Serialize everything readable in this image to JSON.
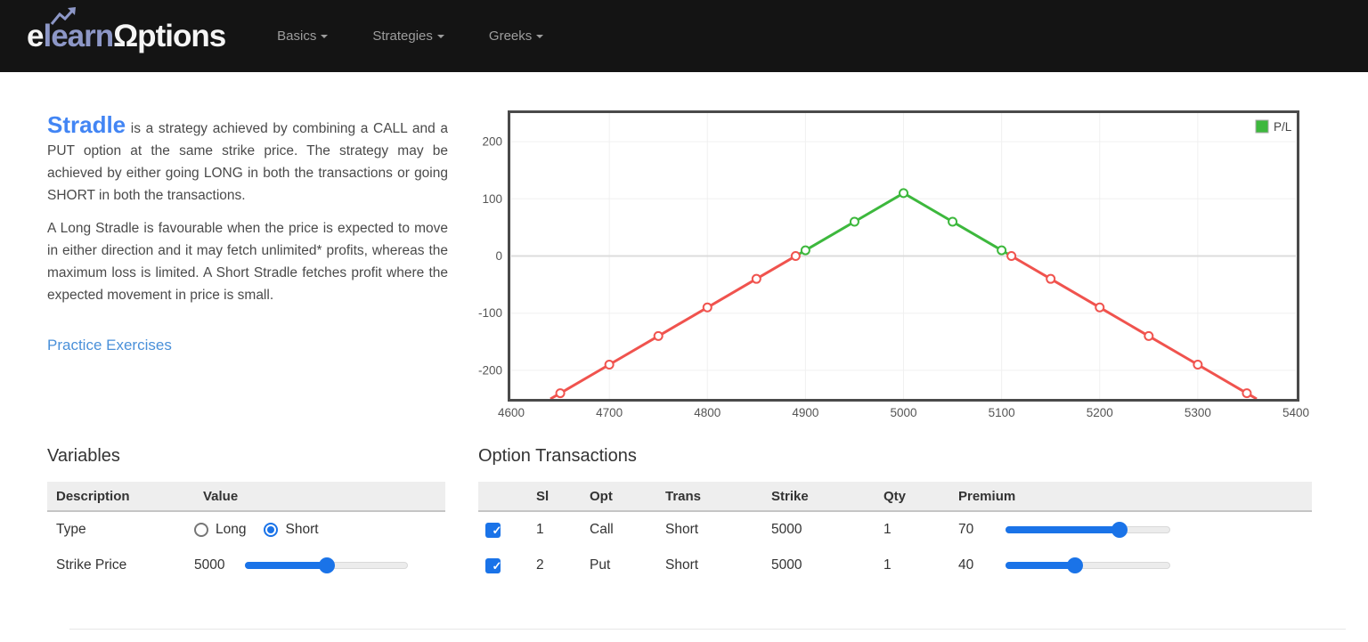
{
  "navbar": {
    "logo": {
      "part1": "e",
      "part2": "learn",
      "part3": "Ωptions"
    },
    "items": [
      {
        "label": "Basics"
      },
      {
        "label": "Strategies"
      },
      {
        "label": "Greeks"
      }
    ]
  },
  "intro": {
    "heading": "Stradle",
    "paragraph1_rest": " is a strategy achieved by combining a CALL and a PUT option at the same strike price. The strategy may be achieved by either going LONG in both the transactions or going SHORT in both the transactions.",
    "paragraph2": "A Long Stradle is favourable when the price is expected to move in either direction and it may fetch unlimited* profits, whereas the maximum loss is limited. A Short Stradle fetches profit where the expected movement in price is small.",
    "link": "Practice Exercises"
  },
  "chart_data": {
    "type": "line",
    "legend": "P/L",
    "legend_position": "top-right",
    "grid": true,
    "x_range": [
      4600,
      5400
    ],
    "y_range": [
      -250,
      250
    ],
    "x_ticks": [
      4600,
      4700,
      4800,
      4900,
      5000,
      5100,
      5200,
      5300,
      5400
    ],
    "y_ticks": [
      -200,
      -100,
      0,
      100,
      200
    ],
    "profit_color": "#3db83d",
    "loss_color": "#f0534e",
    "series": [
      {
        "name": "P/L",
        "segments": [
          {
            "color": "#f0534e",
            "points": [
              [
                4640,
                -250
              ],
              [
                4650,
                -240
              ],
              [
                4700,
                -190
              ],
              [
                4750,
                -140
              ],
              [
                4800,
                -90
              ],
              [
                4850,
                -40
              ],
              [
                4890,
                0
              ]
            ]
          },
          {
            "color": "#3db83d",
            "points": [
              [
                4890,
                0
              ],
              [
                4900,
                10
              ],
              [
                4950,
                60
              ],
              [
                5000,
                110
              ],
              [
                5050,
                60
              ],
              [
                5100,
                10
              ],
              [
                5110,
                0
              ]
            ]
          },
          {
            "color": "#f0534e",
            "points": [
              [
                5110,
                0
              ],
              [
                5150,
                -40
              ],
              [
                5200,
                -90
              ],
              [
                5250,
                -140
              ],
              [
                5300,
                -190
              ],
              [
                5350,
                -240
              ],
              [
                5360,
                -250
              ]
            ]
          }
        ],
        "markers": [
          {
            "x": 4650,
            "y": -240,
            "color": "#f0534e"
          },
          {
            "x": 4700,
            "y": -190,
            "color": "#f0534e"
          },
          {
            "x": 4750,
            "y": -140,
            "color": "#f0534e"
          },
          {
            "x": 4800,
            "y": -90,
            "color": "#f0534e"
          },
          {
            "x": 4850,
            "y": -40,
            "color": "#f0534e"
          },
          {
            "x": 4890,
            "y": 0,
            "color": "#f0534e"
          },
          {
            "x": 4900,
            "y": 10,
            "color": "#3db83d"
          },
          {
            "x": 4950,
            "y": 60,
            "color": "#3db83d"
          },
          {
            "x": 5000,
            "y": 110,
            "color": "#3db83d"
          },
          {
            "x": 5050,
            "y": 60,
            "color": "#3db83d"
          },
          {
            "x": 5100,
            "y": 10,
            "color": "#3db83d"
          },
          {
            "x": 5110,
            "y": 0,
            "color": "#f0534e"
          },
          {
            "x": 5150,
            "y": -40,
            "color": "#f0534e"
          },
          {
            "x": 5200,
            "y": -90,
            "color": "#f0534e"
          },
          {
            "x": 5250,
            "y": -140,
            "color": "#f0534e"
          },
          {
            "x": 5300,
            "y": -190,
            "color": "#f0534e"
          },
          {
            "x": 5350,
            "y": -240,
            "color": "#f0534e"
          }
        ]
      }
    ]
  },
  "variables": {
    "heading": "Variables",
    "columns": [
      "Description",
      "Value"
    ],
    "rows": [
      {
        "description": "Type",
        "control": "radio",
        "options": [
          "Long",
          "Short"
        ],
        "selected": "Short"
      },
      {
        "description": "Strike Price",
        "control": "slider",
        "value": "5000",
        "slider_percent": 50
      }
    ]
  },
  "transactions": {
    "heading": "Option Transactions",
    "columns": [
      "",
      "Sl",
      "Opt",
      "Trans",
      "Strike",
      "Qty",
      "Premium"
    ],
    "rows": [
      {
        "checked": true,
        "sl": "1",
        "opt": "Call",
        "trans": "Short",
        "strike": "5000",
        "qty": "1",
        "premium": "70",
        "slider_percent": 69
      },
      {
        "checked": true,
        "sl": "2",
        "opt": "Put",
        "trans": "Short",
        "strike": "5000",
        "qty": "1",
        "premium": "40",
        "slider_percent": 42
      }
    ]
  },
  "colors": {
    "navbar_bg": "#141414",
    "nav_text": "#9d9d9d",
    "logo_blue": "#8d97c7",
    "heading_blue": "#4285f4",
    "link_blue": "#4a90d9",
    "accent_blue": "#1a73e8",
    "profit_green": "#3db83d",
    "loss_red": "#f0534e"
  }
}
